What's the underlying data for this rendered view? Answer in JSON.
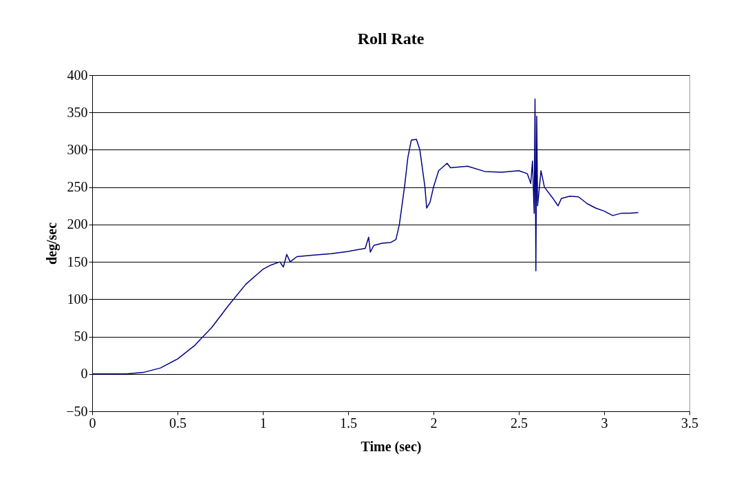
{
  "chart_data": {
    "type": "line",
    "title": "Roll Rate",
    "xlabel": "Time (sec)",
    "ylabel": "deg/sec",
    "x": [
      0,
      0.1,
      0.2,
      0.3,
      0.4,
      0.5,
      0.6,
      0.7,
      0.8,
      0.9,
      1.0,
      1.05,
      1.1,
      1.12,
      1.14,
      1.16,
      1.2,
      1.3,
      1.4,
      1.5,
      1.6,
      1.62,
      1.63,
      1.65,
      1.7,
      1.75,
      1.78,
      1.8,
      1.83,
      1.85,
      1.87,
      1.9,
      1.92,
      1.95,
      1.96,
      1.98,
      2.0,
      2.03,
      2.06,
      2.08,
      2.1,
      2.2,
      2.3,
      2.4,
      2.5,
      2.55,
      2.57,
      2.58,
      2.59,
      2.595,
      2.6,
      2.605,
      2.61,
      2.63,
      2.65,
      2.7,
      2.73,
      2.75,
      2.8,
      2.85,
      2.9,
      2.95,
      3.0,
      3.05,
      3.1,
      3.15,
      3.2
    ],
    "series": [
      {
        "color": "#000080",
        "values": [
          0,
          0,
          0,
          2,
          8,
          20,
          38,
          62,
          92,
          120,
          140,
          146,
          150,
          143,
          160,
          150,
          157,
          159,
          161,
          164,
          168,
          183,
          163,
          172,
          175,
          176,
          180,
          200,
          250,
          290,
          313,
          314,
          300,
          250,
          222,
          230,
          250,
          272,
          278,
          282,
          276,
          278,
          271,
          270,
          272,
          268,
          255,
          285,
          215,
          368,
          138,
          345,
          225,
          272,
          250,
          235,
          225,
          235,
          238,
          237,
          228,
          222,
          218,
          212,
          215,
          215,
          216
        ]
      }
    ],
    "xlim": [
      0,
      3.5
    ],
    "xticks": [
      0,
      0.5,
      1,
      1.5,
      2,
      2.5,
      3,
      3.5
    ],
    "ylim": [
      -50,
      400
    ],
    "yticks": [
      -50,
      0,
      50,
      100,
      150,
      200,
      250,
      300,
      350,
      400
    ],
    "grid": "y"
  }
}
